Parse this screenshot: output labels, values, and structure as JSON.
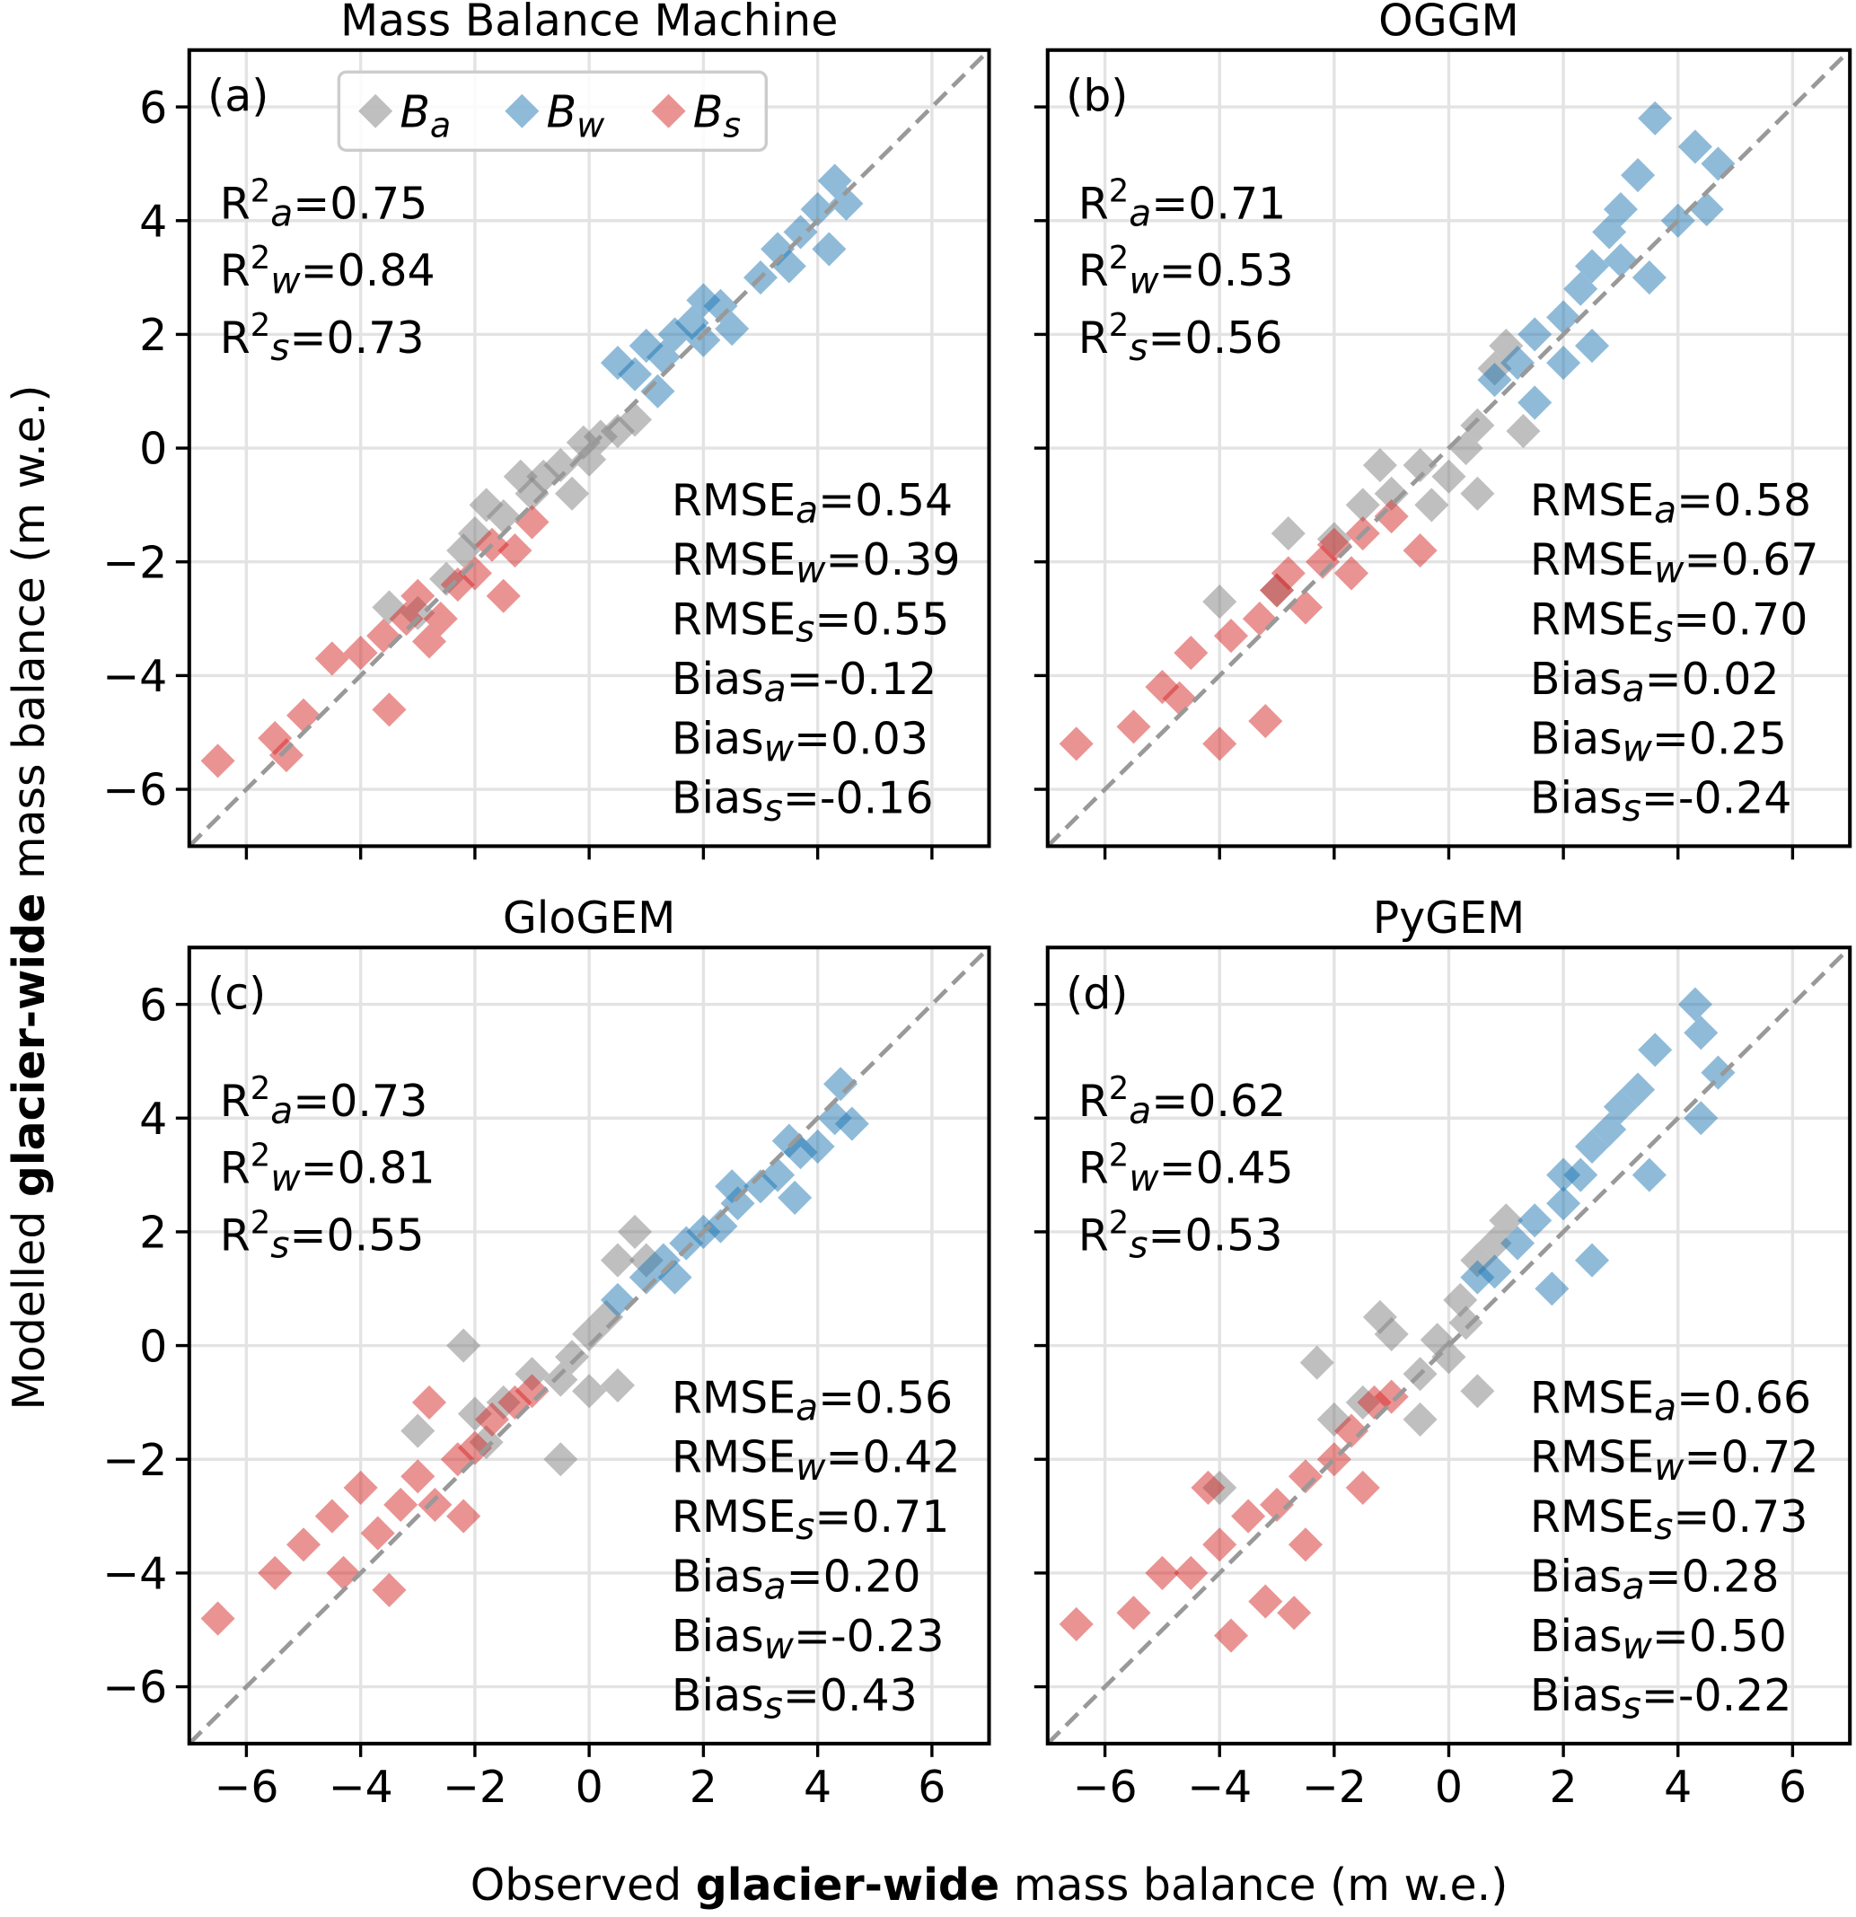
{
  "figure": {
    "xlabel": [
      {
        "text": "Observed ",
        "bold": false
      },
      {
        "text": "glacier-wide",
        "bold": true
      },
      {
        "text": " mass balance (m w.e.)",
        "bold": false
      }
    ],
    "ylabel": [
      {
        "text": "Modelled ",
        "bold": false
      },
      {
        "text": "glacier-wide",
        "bold": true
      },
      {
        "text": " mass balance (m w.e.)",
        "bold": false
      }
    ]
  },
  "chart_data": [
    {
      "type": "scatter",
      "title": "Mass Balance Machine",
      "panel_label": "(a)",
      "legend": "upper center",
      "grid": true,
      "diagonal": true,
      "xlim": [
        -7,
        7
      ],
      "ylim": [
        -7,
        7
      ],
      "x_ticklabels": false,
      "y_ticklabels": true,
      "xticks": [
        -6,
        -4,
        -2,
        0,
        2,
        4,
        6
      ],
      "yticks": [
        {
          "value": -6,
          "label": "−6"
        },
        {
          "value": -4,
          "label": "−4"
        },
        {
          "value": -2,
          "label": "−2"
        },
        0,
        2,
        4,
        6
      ],
      "stats_left": [
        {
          "base": "R",
          "sup": "2",
          "sub": "a",
          "rest": "=0.75"
        },
        {
          "base": "R",
          "sup": "2",
          "sub": "w",
          "rest": "=0.84"
        },
        {
          "base": "R",
          "sup": "2",
          "sub": "s",
          "rest": "=0.73"
        }
      ],
      "stats_right": [
        {
          "base": "RMSE",
          "sub": "a",
          "rest": "=0.54"
        },
        {
          "base": "RMSE",
          "sub": "w",
          "rest": "=0.39"
        },
        {
          "base": "RMSE",
          "sub": "s",
          "rest": "=0.55"
        },
        {
          "base": "Bias",
          "sub": "a",
          "rest": "=-0.12"
        },
        {
          "base": "Bias",
          "sub": "w",
          "rest": "=0.03"
        },
        {
          "base": "Bias",
          "sub": "s",
          "rest": "=-0.16"
        }
      ],
      "series": [
        {
          "name": "B",
          "sub": "a",
          "color": "#7f7f7f",
          "x": [
            -3.5,
            -3,
            -2.5,
            -2,
            -1.8,
            -1.5,
            -1,
            -0.8,
            -0.5,
            -0.3,
            0,
            0.2,
            0.5,
            0.8,
            -1.2,
            -2.2,
            -0.1
          ],
          "values": [
            -2.8,
            -2.9,
            -2.3,
            -1.5,
            -1.0,
            -1.2,
            -0.8,
            -0.5,
            -0.3,
            -0.8,
            -0.2,
            0.2,
            0.3,
            0.5,
            -0.5,
            -1.8,
            0.1
          ]
        },
        {
          "name": "B",
          "sub": "w",
          "color": "#1f77b4",
          "x": [
            0.5,
            0.8,
            1,
            1.3,
            1.5,
            1.8,
            2,
            2.3,
            2.5,
            2,
            3,
            3.3,
            3.7,
            4,
            4.3,
            4.5,
            4.2,
            3.5,
            1.2
          ],
          "values": [
            1.5,
            1.3,
            1.8,
            1.6,
            2.0,
            2.2,
            1.9,
            2.5,
            2.1,
            2.6,
            3.0,
            3.5,
            3.8,
            4.2,
            4.7,
            4.3,
            3.5,
            3.2,
            1.0
          ]
        },
        {
          "name": "B",
          "sub": "s",
          "color": "#d62728",
          "x": [
            -6.5,
            -5.5,
            -5,
            -4.5,
            -4,
            -3.6,
            -3.2,
            -3,
            -2.6,
            -2.3,
            -2,
            -1.7,
            -1.3,
            -1,
            -3.5,
            -2.8,
            -1.5,
            -5.3
          ],
          "values": [
            -5.5,
            -5.1,
            -4.7,
            -3.7,
            -3.6,
            -3.3,
            -3.0,
            -2.6,
            -3.0,
            -2.4,
            -2.2,
            -1.7,
            -1.8,
            -1.3,
            -4.6,
            -3.4,
            -2.6,
            -5.4
          ]
        }
      ]
    },
    {
      "type": "scatter",
      "title": "OGGM",
      "panel_label": "(b)",
      "grid": true,
      "diagonal": true,
      "xlim": [
        -7,
        7
      ],
      "ylim": [
        -7,
        7
      ],
      "x_ticklabels": false,
      "y_ticklabels": false,
      "xticks": [
        -6,
        -4,
        -2,
        0,
        2,
        4,
        6
      ],
      "yticks": [
        -6,
        -4,
        -2,
        0,
        2,
        4,
        6
      ],
      "stats_left": [
        {
          "base": "R",
          "sup": "2",
          "sub": "a",
          "rest": "=0.71"
        },
        {
          "base": "R",
          "sup": "2",
          "sub": "w",
          "rest": "=0.53"
        },
        {
          "base": "R",
          "sup": "2",
          "sub": "s",
          "rest": "=0.56"
        }
      ],
      "stats_right": [
        {
          "base": "RMSE",
          "sub": "a",
          "rest": "=0.58"
        },
        {
          "base": "RMSE",
          "sub": "w",
          "rest": "=0.67"
        },
        {
          "base": "RMSE",
          "sub": "s",
          "rest": "=0.70"
        },
        {
          "base": "Bias",
          "sub": "a",
          "rest": "=0.02"
        },
        {
          "base": "Bias",
          "sub": "w",
          "rest": "=0.25"
        },
        {
          "base": "Bias",
          "sub": "s",
          "rest": "=-0.24"
        }
      ],
      "series": [
        {
          "name": "B",
          "sub": "a",
          "color": "#7f7f7f",
          "x": [
            -4,
            -3,
            -2,
            -1.5,
            -1,
            -0.5,
            -0.3,
            0,
            0.3,
            0.5,
            0.8,
            1,
            0.5,
            -1.2,
            1.3,
            -2.8
          ],
          "values": [
            -2.7,
            -2.5,
            -1.6,
            -1.0,
            -0.8,
            -0.3,
            -1.0,
            -0.5,
            0.0,
            0.4,
            1.4,
            1.8,
            -0.8,
            -0.3,
            0.3,
            -1.5
          ]
        },
        {
          "name": "B",
          "sub": "w",
          "color": "#1f77b4",
          "x": [
            0.8,
            1.2,
            1.5,
            2,
            2.3,
            2.5,
            2.8,
            3,
            3.3,
            3.6,
            4.3,
            4,
            4.5,
            2,
            2.5,
            3.5,
            1.5,
            4.7,
            3
          ],
          "values": [
            1.2,
            1.5,
            2.0,
            2.3,
            2.8,
            3.2,
            3.8,
            4.2,
            4.8,
            5.8,
            5.3,
            4.0,
            4.2,
            1.5,
            1.8,
            3.0,
            0.8,
            5.0,
            3.3
          ]
        },
        {
          "name": "B",
          "sub": "s",
          "color": "#d62728",
          "x": [
            -6.5,
            -5.5,
            -5,
            -4.5,
            -4,
            -3.8,
            -3.3,
            -3,
            -2.5,
            -2.2,
            -2,
            -1.5,
            -1,
            -0.5,
            -3.2,
            -4.7,
            -2.8,
            -1.7
          ],
          "values": [
            -5.2,
            -4.9,
            -4.2,
            -3.6,
            -5.2,
            -3.3,
            -3.0,
            -2.5,
            -2.8,
            -2.0,
            -1.7,
            -1.5,
            -1.2,
            -1.8,
            -4.8,
            -4.4,
            -2.2,
            -2.2
          ]
        }
      ]
    },
    {
      "type": "scatter",
      "title": "GloGEM",
      "panel_label": "(c)",
      "grid": true,
      "diagonal": true,
      "xlim": [
        -7,
        7
      ],
      "ylim": [
        -7,
        7
      ],
      "x_ticklabels": true,
      "y_ticklabels": true,
      "xticks": [
        {
          "value": -6,
          "label": "−6"
        },
        {
          "value": -4,
          "label": "−4"
        },
        {
          "value": -2,
          "label": "−2"
        },
        0,
        2,
        4,
        6
      ],
      "yticks": [
        {
          "value": -6,
          "label": "−6"
        },
        {
          "value": -4,
          "label": "−4"
        },
        {
          "value": -2,
          "label": "−2"
        },
        0,
        2,
        4,
        6
      ],
      "stats_left": [
        {
          "base": "R",
          "sup": "2",
          "sub": "a",
          "rest": "=0.73"
        },
        {
          "base": "R",
          "sup": "2",
          "sub": "w",
          "rest": "=0.81"
        },
        {
          "base": "R",
          "sup": "2",
          "sub": "s",
          "rest": "=0.55"
        }
      ],
      "stats_right": [
        {
          "base": "RMSE",
          "sub": "a",
          "rest": "=0.56"
        },
        {
          "base": "RMSE",
          "sub": "w",
          "rest": "=0.42"
        },
        {
          "base": "RMSE",
          "sub": "s",
          "rest": "=0.71"
        },
        {
          "base": "Bias",
          "sub": "a",
          "rest": "=0.20"
        },
        {
          "base": "Bias",
          "sub": "w",
          "rest": "=-0.23"
        },
        {
          "base": "Bias",
          "sub": "s",
          "rest": "=0.43"
        }
      ],
      "series": [
        {
          "name": "B",
          "sub": "a",
          "color": "#7f7f7f",
          "x": [
            -3,
            -2.2,
            -2,
            -1.5,
            -1,
            -0.5,
            -0.3,
            0,
            0.3,
            0.5,
            0.8,
            1,
            0.5,
            -0.5,
            -1.8,
            0
          ],
          "values": [
            -1.5,
            0.0,
            -1.2,
            -1.0,
            -0.5,
            -0.6,
            -0.2,
            0.2,
            0.5,
            1.5,
            2.0,
            1.5,
            -0.7,
            -2.0,
            -1.7,
            -0.8
          ]
        },
        {
          "name": "B",
          "sub": "w",
          "color": "#1f77b4",
          "x": [
            0.5,
            1,
            1.3,
            1.7,
            2,
            2.3,
            2.6,
            3,
            3.3,
            3.7,
            4,
            4.3,
            4.4,
            4.6,
            3.5,
            2.5,
            1.5,
            3.6
          ],
          "values": [
            0.8,
            1.2,
            1.5,
            1.8,
            2.0,
            2.1,
            2.5,
            2.8,
            3.0,
            3.4,
            3.5,
            4.0,
            4.6,
            3.9,
            3.6,
            2.8,
            1.2,
            2.6
          ]
        },
        {
          "name": "B",
          "sub": "s",
          "color": "#d62728",
          "x": [
            -6.5,
            -5.5,
            -5,
            -4.5,
            -4,
            -3.7,
            -3.3,
            -3,
            -2.7,
            -2.3,
            -2,
            -1.7,
            -1.3,
            -1,
            -3.5,
            -4.3,
            -2.8,
            -2.2
          ],
          "values": [
            -4.8,
            -4.0,
            -3.5,
            -3.0,
            -2.5,
            -3.3,
            -2.8,
            -2.3,
            -2.8,
            -2.0,
            -1.8,
            -1.3,
            -1.0,
            -0.8,
            -4.3,
            -4.0,
            -1.0,
            -3.0
          ]
        }
      ]
    },
    {
      "type": "scatter",
      "title": "PyGEM",
      "panel_label": "(d)",
      "grid": true,
      "diagonal": true,
      "xlim": [
        -7,
        7
      ],
      "ylim": [
        -7,
        7
      ],
      "x_ticklabels": true,
      "y_ticklabels": false,
      "xticks": [
        {
          "value": -6,
          "label": "−6"
        },
        {
          "value": -4,
          "label": "−4"
        },
        {
          "value": -2,
          "label": "−2"
        },
        0,
        2,
        4,
        6
      ],
      "yticks": [
        -6,
        -4,
        -2,
        0,
        2,
        4,
        6
      ],
      "stats_left": [
        {
          "base": "R",
          "sup": "2",
          "sub": "a",
          "rest": "=0.62"
        },
        {
          "base": "R",
          "sup": "2",
          "sub": "w",
          "rest": "=0.45"
        },
        {
          "base": "R",
          "sup": "2",
          "sub": "s",
          "rest": "=0.53"
        }
      ],
      "stats_right": [
        {
          "base": "RMSE",
          "sub": "a",
          "rest": "=0.66"
        },
        {
          "base": "RMSE",
          "sub": "w",
          "rest": "=0.72"
        },
        {
          "base": "RMSE",
          "sub": "s",
          "rest": "=0.73"
        },
        {
          "base": "Bias",
          "sub": "a",
          "rest": "=0.28"
        },
        {
          "base": "Bias",
          "sub": "w",
          "rest": "=0.50"
        },
        {
          "base": "Bias",
          "sub": "s",
          "rest": "=-0.22"
        }
      ],
      "series": [
        {
          "name": "B",
          "sub": "a",
          "color": "#7f7f7f",
          "x": [
            -4,
            -2.3,
            -2,
            -1.5,
            -1,
            -0.5,
            -0.2,
            0,
            0.3,
            0.5,
            0.8,
            1,
            0.5,
            0.2,
            -1.2,
            -0.5
          ],
          "values": [
            -2.5,
            -0.3,
            -1.3,
            -1.0,
            0.2,
            -0.5,
            0.1,
            -0.2,
            0.4,
            1.5,
            1.8,
            2.2,
            -0.8,
            0.8,
            0.5,
            -1.3
          ]
        },
        {
          "name": "B",
          "sub": "w",
          "color": "#1f77b4",
          "x": [
            0.5,
            0.8,
            1.2,
            1.5,
            2,
            2.3,
            2.5,
            2.8,
            3,
            3.3,
            3.6,
            4.3,
            4.4,
            4.7,
            4.4,
            2.5,
            1.8,
            3.5,
            2
          ],
          "values": [
            1.2,
            1.3,
            1.8,
            2.2,
            2.5,
            3.0,
            3.5,
            3.8,
            4.2,
            4.5,
            5.2,
            6.0,
            5.5,
            4.8,
            4.0,
            1.5,
            1.0,
            3.0,
            3.0
          ]
        },
        {
          "name": "B",
          "sub": "s",
          "color": "#d62728",
          "x": [
            -6.5,
            -5.5,
            -5,
            -4.5,
            -4,
            -3.8,
            -3.5,
            -3,
            -2.7,
            -2.5,
            -2,
            -1.7,
            -1.3,
            -1,
            -2.5,
            -3.2,
            -1.5,
            -4.2
          ],
          "values": [
            -4.9,
            -4.7,
            -4.0,
            -4.0,
            -3.5,
            -5.1,
            -3.0,
            -2.8,
            -4.7,
            -2.3,
            -2.0,
            -1.5,
            -1.0,
            -0.9,
            -3.5,
            -4.5,
            -2.5,
            -2.5
          ]
        }
      ]
    }
  ]
}
